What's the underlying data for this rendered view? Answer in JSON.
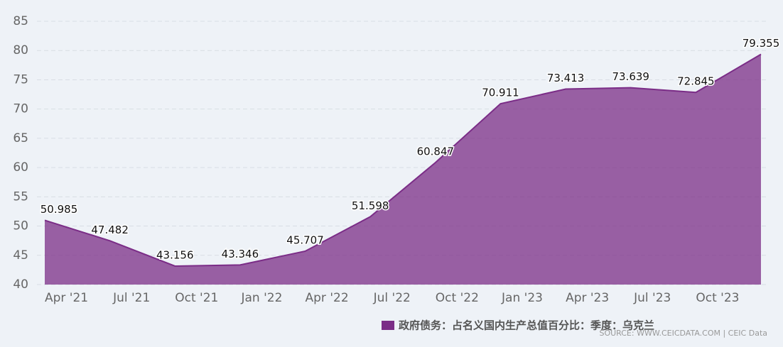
{
  "chart_data": {
    "type": "area",
    "x": [
      "2021-03",
      "2021-06",
      "2021-09",
      "2021-12",
      "2022-03",
      "2022-06",
      "2022-09",
      "2022-12",
      "2023-03",
      "2023-06",
      "2023-09",
      "2023-12"
    ],
    "series": [
      {
        "name": "政府债务：占名义国内生产总值百分比：季度：乌克兰",
        "color": "#7b2d87",
        "values": [
          50.985,
          47.482,
          43.156,
          43.346,
          45.707,
          51.598,
          60.847,
          70.911,
          73.413,
          73.639,
          72.845,
          79.355
        ]
      }
    ],
    "xlim": [
      "2021-03",
      "2023-12"
    ],
    "xticks": [
      {
        "value": "2021-04",
        "label": "Apr '21"
      },
      {
        "value": "2021-07",
        "label": "Jul '21"
      },
      {
        "value": "2021-10",
        "label": "Oct '21"
      },
      {
        "value": "2022-01",
        "label": "Jan '22"
      },
      {
        "value": "2022-04",
        "label": "Apr '22"
      },
      {
        "value": "2022-07",
        "label": "Jul '22"
      },
      {
        "value": "2022-10",
        "label": "Oct '22"
      },
      {
        "value": "2023-01",
        "label": "Jan '23"
      },
      {
        "value": "2023-04",
        "label": "Apr '23"
      },
      {
        "value": "2023-07",
        "label": "Jul '23"
      },
      {
        "value": "2023-10",
        "label": "Oct '23"
      }
    ],
    "ylim": [
      40,
      85
    ],
    "yticks": [
      40,
      45,
      50,
      55,
      60,
      65,
      70,
      75,
      80,
      85
    ],
    "grid": true,
    "source": "SOURCE: WWW.CEICDATA.COM | CEIC Data"
  }
}
